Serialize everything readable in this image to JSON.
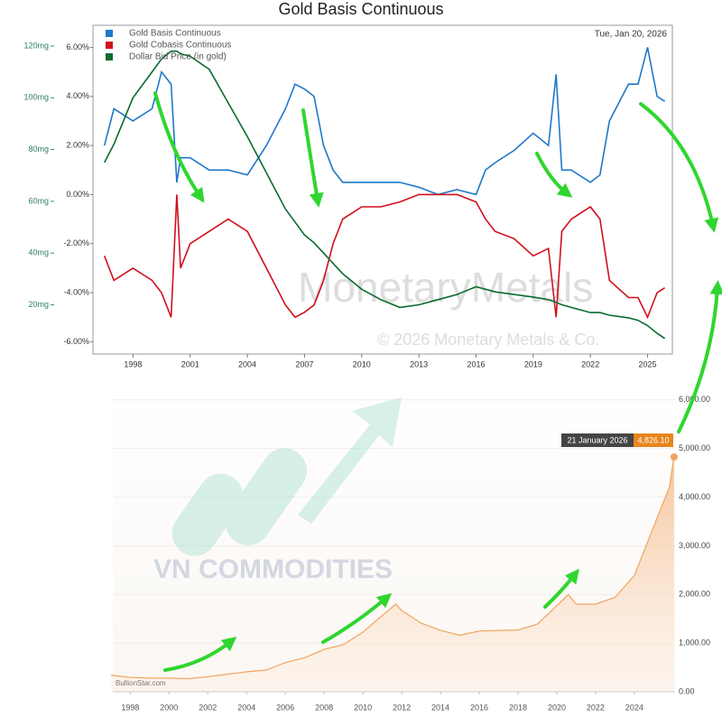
{
  "chart_data": [
    {
      "type": "line",
      "title": "Gold Basis Continuous",
      "date_label": "Tue, Jan 20, 2026",
      "watermark": "MonetaryMetals",
      "copyright": "© 2026 Monetary Metals & Co.",
      "x": [
        1996.5,
        1997,
        1998,
        1999,
        1999.5,
        2000,
        2000.3,
        2000.5,
        2001,
        2002,
        2003,
        2004,
        2005,
        2006,
        2006.5,
        2007,
        2007.5,
        2008,
        2008.5,
        2009,
        2010,
        2011,
        2012,
        2013,
        2014,
        2015,
        2016,
        2016.5,
        2017,
        2018,
        2019,
        2019.8,
        2020.2,
        2020.5,
        2021,
        2022,
        2022.5,
        2023,
        2024,
        2024.5,
        2025,
        2025.5,
        2025.9
      ],
      "series": [
        {
          "name": "Gold Basis Continuous",
          "color": "#1f78c8",
          "values": [
            2.0,
            3.5,
            3.0,
            3.5,
            5.0,
            4.5,
            0.5,
            1.5,
            1.5,
            1.0,
            1.0,
            0.8,
            2.0,
            3.5,
            4.5,
            4.3,
            4.0,
            2.0,
            1.0,
            0.5,
            0.5,
            0.5,
            0.5,
            0.3,
            0.0,
            0.2,
            0.0,
            1.0,
            1.3,
            1.8,
            2.5,
            2.0,
            4.9,
            1.0,
            1.0,
            0.5,
            0.8,
            3.0,
            4.5,
            4.5,
            6.0,
            4.0,
            3.8
          ]
        },
        {
          "name": "Gold Cobasis Continuous",
          "color": "#d0101c",
          "values": [
            -2.5,
            -3.5,
            -3.0,
            -3.5,
            -4.0,
            -5.0,
            0.0,
            -3.0,
            -2.0,
            -1.5,
            -1.0,
            -1.5,
            -3.0,
            -4.5,
            -5.0,
            -4.8,
            -4.5,
            -3.5,
            -2.0,
            -1.0,
            -0.5,
            -0.5,
            -0.3,
            0.0,
            0.0,
            0.0,
            -0.3,
            -1.0,
            -1.5,
            -1.8,
            -2.5,
            -2.2,
            -5.0,
            -1.5,
            -1.0,
            -0.5,
            -1.0,
            -3.5,
            -4.2,
            -4.2,
            -5.0,
            -4.0,
            -3.8
          ]
        },
        {
          "name": "Dollar Bid Price (in gold)",
          "color": "#0a6b2e",
          "axis": "y2",
          "values": [
            75,
            82,
            100,
            110,
            115,
            118,
            118,
            117,
            116,
            111,
            98,
            85,
            71,
            57,
            52,
            47,
            44,
            40,
            36,
            32,
            26,
            22,
            19,
            20,
            22,
            24,
            27,
            26,
            25,
            24,
            23,
            22,
            21,
            20,
            19,
            17,
            17,
            16,
            15,
            14,
            12,
            9,
            7
          ]
        }
      ],
      "xlim": [
        1995.9,
        2026.3
      ],
      "xticks": [
        1998,
        2001,
        2004,
        2007,
        2010,
        2013,
        2016,
        2019,
        2022,
        2025
      ],
      "ylim": [
        -6.5,
        6.9
      ],
      "yticks": [
        {
          "value": -6,
          "label": "-6.00%"
        },
        {
          "value": -4,
          "label": "-4.00%"
        },
        {
          "value": -2,
          "label": "-2.00%"
        },
        {
          "value": 0,
          "label": "0.00%"
        },
        {
          "value": 2,
          "label": "2.00%"
        },
        {
          "value": 4,
          "label": "4.00%"
        },
        {
          "value": 6,
          "label": "6.00%"
        }
      ],
      "y2lim": [
        1,
        128
      ],
      "y2ticks": [
        {
          "value": 20,
          "label": "20mg"
        },
        {
          "value": 40,
          "label": "40mg"
        },
        {
          "value": 60,
          "label": "60mg"
        },
        {
          "value": 80,
          "label": "80mg"
        },
        {
          "value": 100,
          "label": "100mg"
        },
        {
          "value": 120,
          "label": "120mg"
        }
      ],
      "legend": "top-left"
    },
    {
      "type": "area",
      "watermark": "VN COMMODITIES",
      "source": "BullionStar.com",
      "color": "#f0a55e",
      "x": [
        1997,
        1998,
        1999,
        2000,
        2001,
        2002,
        2003,
        2004,
        2005,
        2006,
        2007,
        2008,
        2009,
        2010,
        2011,
        2011.7,
        2012,
        2013,
        2014,
        2015,
        2016,
        2017,
        2018,
        2019,
        2020,
        2020.6,
        2021,
        2022,
        2023,
        2024,
        2025,
        2025.8,
        2026.05
      ],
      "values": [
        340,
        295,
        280,
        280,
        270,
        310,
        360,
        410,
        445,
        600,
        700,
        870,
        970,
        1225,
        1570,
        1800,
        1670,
        1410,
        1265,
        1160,
        1250,
        1260,
        1270,
        1390,
        1770,
        2000,
        1800,
        1800,
        1940,
        2390,
        3400,
        4200,
        4826.1
      ],
      "annotation": {
        "label": "21 January 2026",
        "value": 4826.1,
        "value_label": "4,826.10"
      },
      "xlim": [
        1997.1,
        2026.1
      ],
      "xticks": [
        1998,
        2000,
        2002,
        2004,
        2006,
        2008,
        2010,
        2012,
        2014,
        2016,
        2018,
        2020,
        2022,
        2024
      ],
      "ylim": [
        0,
        6330
      ],
      "yticks": [
        {
          "value": 0,
          "label": "0.00"
        },
        {
          "value": 1000,
          "label": "1,000.00"
        },
        {
          "value": 2000,
          "label": "2,000.00"
        },
        {
          "value": 3000,
          "label": "3,000.00"
        },
        {
          "value": 4000,
          "label": "4,000.00"
        },
        {
          "value": 5000,
          "label": "5,000.00"
        },
        {
          "value": 6000,
          "label": "6,000.00"
        }
      ],
      "grid": true
    }
  ]
}
